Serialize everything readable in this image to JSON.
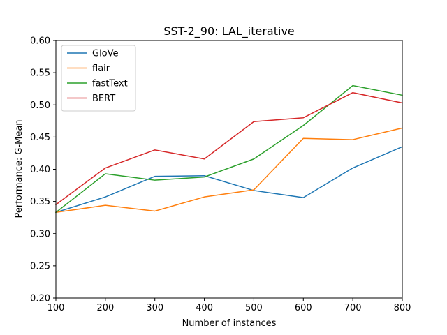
{
  "chart_data": {
    "type": "line",
    "title": "SST-2_90: LAL_iterative",
    "xlabel": "Number of instances",
    "ylabel": "Performance: G-Mean",
    "xlim": [
      100,
      800
    ],
    "ylim": [
      0.2,
      0.6
    ],
    "x": [
      100,
      200,
      300,
      400,
      500,
      600,
      700,
      800
    ],
    "xticks": [
      "100",
      "200",
      "300",
      "400",
      "500",
      "600",
      "700",
      "800"
    ],
    "yticks": [
      "0.20",
      "0.25",
      "0.30",
      "0.35",
      "0.40",
      "0.45",
      "0.50",
      "0.55",
      "0.60"
    ],
    "grid": false,
    "legend_position": "upper-left",
    "series": [
      {
        "name": "GloVe",
        "color": "#1f77b4",
        "values": [
          0.333,
          0.357,
          0.389,
          0.39,
          0.367,
          0.356,
          0.402,
          0.435
        ]
      },
      {
        "name": "flair",
        "color": "#ff7f0e",
        "values": [
          0.333,
          0.344,
          0.335,
          0.357,
          0.368,
          0.448,
          0.446,
          0.464
        ]
      },
      {
        "name": "fastText",
        "color": "#2ca02c",
        "values": [
          0.333,
          0.393,
          0.383,
          0.388,
          0.416,
          0.468,
          0.53,
          0.515
        ]
      },
      {
        "name": "BERT",
        "color": "#d62728",
        "values": [
          0.345,
          0.402,
          0.43,
          0.416,
          0.474,
          0.48,
          0.519,
          0.503
        ]
      }
    ]
  }
}
